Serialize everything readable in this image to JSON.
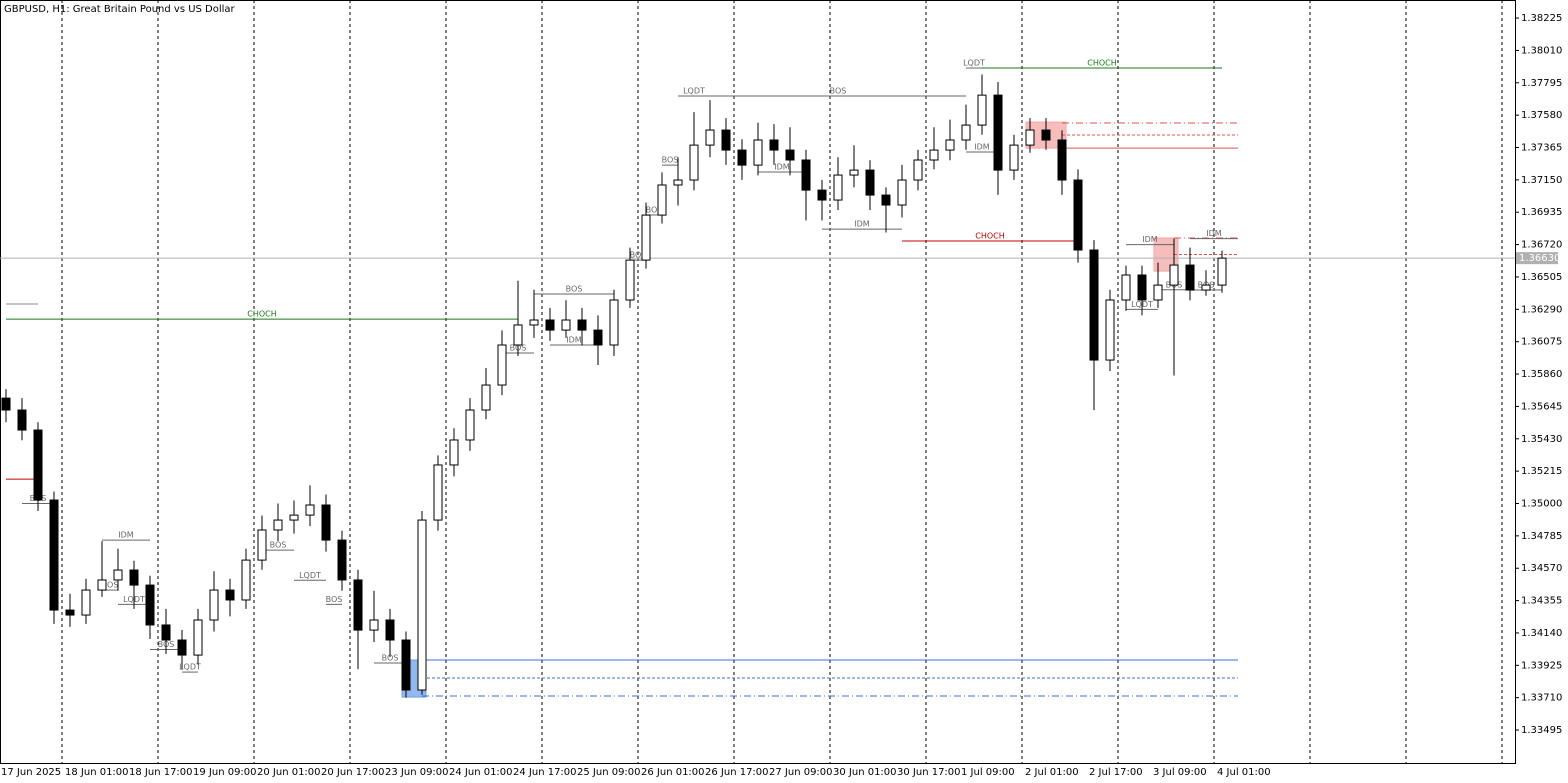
{
  "chart_data": {
    "type": "candlestick",
    "title": "GBPUSD, H1:  Great Britain Pound vs US Dollar",
    "categories": [
      "17 Jun 2025",
      null,
      null,
      null,
      "18 Jun 01:00",
      null,
      null,
      null,
      "18 Jun 17:00",
      null,
      null,
      null,
      "19 Jun 09:00",
      null,
      null,
      null,
      "20 Jun 01:00",
      null,
      null,
      null,
      "20 Jun 17:00",
      null,
      null,
      null,
      "23 Jun 09:00",
      null,
      null,
      null,
      "24 Jun 01:00",
      null,
      null,
      null,
      "24 Jun 17:00",
      null,
      null,
      null,
      "25 Jun 09:00",
      null,
      null,
      null,
      "26 Jun 01:00",
      null,
      null,
      null,
      "26 Jun 17:00",
      null,
      null,
      null,
      "27 Jun 09:00",
      null,
      null,
      null,
      "30 Jun 01:00",
      null,
      null,
      null,
      "30 Jun 17:00",
      null,
      null,
      null,
      "1 Jul 09:00",
      null,
      null,
      null,
      "2 Jul 01:00",
      null,
      null,
      null,
      "2 Jul 17:00",
      null,
      null,
      null,
      "3 Jul 09:00",
      null,
      null,
      null,
      "4 Jul 01:00"
    ],
    "open": [
      1.357,
      1.35621,
      1.35488,
      1.35023,
      1.34292,
      1.34259,
      1.34425,
      1.34492,
      1.34558,
      1.34458,
      1.34193,
      1.34093,
      1.33993,
      1.34226,
      1.34425,
      1.34359,
      1.34624,
      1.34824,
      1.3489,
      1.34923,
      1.3499,
      1.34757,
      1.34492,
      1.34159,
      1.34226,
      1.34093,
      1.33761,
      1.3489,
      1.35256,
      1.35422,
      1.35621,
      1.35787,
      1.36053,
      1.36186,
      1.36219,
      1.36152,
      1.36219,
      1.36152,
      1.36053,
      1.36352,
      1.36617,
      1.36916,
      1.37116,
      1.37149,
      1.37381,
      1.37481,
      1.37348,
      1.37248,
      1.37415,
      1.37348,
      1.37282,
      1.37082,
      1.37016,
      1.37182,
      1.37215,
      1.37049,
      1.36983,
      1.37149,
      1.37282,
      1.37348,
      1.37415,
      1.37514,
      1.37713,
      1.37215,
      1.37381,
      1.37481,
      1.37415,
      1.37149,
      1.36684,
      1.35953,
      1.36352,
      1.36518,
      1.36352,
      1.36451,
      1.36584,
      1.36418,
      1.36451
    ],
    "high": [
      1.3576,
      1.357,
      1.3554,
      1.3508,
      1.344,
      1.345,
      1.3475,
      1.347,
      1.3462,
      1.3452,
      1.343,
      1.3416,
      1.343,
      1.3455,
      1.345,
      1.347,
      1.3492,
      1.35,
      1.3502,
      1.3512,
      1.3506,
      1.3482,
      1.3456,
      1.3442,
      1.343,
      1.3415,
      1.3495,
      1.3532,
      1.355,
      1.357,
      1.359,
      1.3615,
      1.3648,
      1.3642,
      1.363,
      1.3635,
      1.363,
      1.3625,
      1.3642,
      1.367,
      1.37,
      1.372,
      1.373,
      1.376,
      1.3768,
      1.3756,
      1.3742,
      1.3753,
      1.3752,
      1.375,
      1.3735,
      1.3715,
      1.373,
      1.3738,
      1.3728,
      1.371,
      1.3725,
      1.3735,
      1.375,
      1.3755,
      1.3765,
      1.3785,
      1.378,
      1.3745,
      1.3756,
      1.3756,
      1.3748,
      1.3722,
      1.3675,
      1.3642,
      1.3658,
      1.3658,
      1.366,
      1.3676,
      1.367,
      1.3655,
      1.3668
    ],
    "low": [
      1.3554,
      1.3542,
      1.3495,
      1.342,
      1.3418,
      1.342,
      1.3438,
      1.3442,
      1.343,
      1.341,
      1.34,
      1.339,
      1.3393,
      1.3415,
      1.3425,
      1.343,
      1.3456,
      1.3475,
      1.348,
      1.3485,
      1.3468,
      1.3442,
      1.339,
      1.3408,
      1.3398,
      1.3371,
      1.3373,
      1.3482,
      1.3518,
      1.3535,
      1.3556,
      1.3572,
      1.3598,
      1.361,
      1.3608,
      1.361,
      1.3605,
      1.3592,
      1.3598,
      1.363,
      1.3656,
      1.3686,
      1.3698,
      1.3708,
      1.373,
      1.3725,
      1.3715,
      1.3718,
      1.3725,
      1.3718,
      1.3688,
      1.3688,
      1.3695,
      1.371,
      1.3695,
      1.368,
      1.369,
      1.3708,
      1.3722,
      1.3728,
      1.3735,
      1.3745,
      1.3705,
      1.3715,
      1.3733,
      1.3735,
      1.3705,
      1.366,
      1.3562,
      1.3588,
      1.3628,
      1.3625,
      1.363,
      1.3585,
      1.3635,
      1.3638,
      1.364
    ],
    "close": [
      1.35621,
      1.35488,
      1.35023,
      1.34292,
      1.34259,
      1.34425,
      1.34492,
      1.34558,
      1.34458,
      1.34193,
      1.34093,
      1.33993,
      1.34226,
      1.34425,
      1.34359,
      1.34624,
      1.34824,
      1.3489,
      1.34923,
      1.3499,
      1.34757,
      1.34492,
      1.34159,
      1.34226,
      1.34093,
      1.33761,
      1.3489,
      1.35256,
      1.35422,
      1.35621,
      1.35787,
      1.36053,
      1.36186,
      1.36219,
      1.36152,
      1.36219,
      1.36152,
      1.36053,
      1.36352,
      1.36617,
      1.36916,
      1.37116,
      1.37149,
      1.37381,
      1.37481,
      1.37348,
      1.37248,
      1.37415,
      1.37348,
      1.37282,
      1.37082,
      1.37016,
      1.37182,
      1.37215,
      1.37049,
      1.36983,
      1.37149,
      1.37282,
      1.37348,
      1.37415,
      1.37514,
      1.37713,
      1.37215,
      1.37381,
      1.37481,
      1.37415,
      1.37149,
      1.36684,
      1.35953,
      1.36352,
      1.36518,
      1.36352,
      1.36451,
      1.36584,
      1.36418,
      1.36451,
      1.3663
    ],
    "up_color": "#ffffff",
    "down_color": "#000000",
    "ylim": [
      1.33276,
      1.38345
    ],
    "yticks": [
      1.38225,
      {
        "value": 1.3801,
        "label": "1.38010"
      },
      1.37795,
      {
        "value": 1.3758,
        "label": "1.37580"
      },
      1.37365,
      {
        "value": 1.3715,
        "label": "1.37150"
      },
      1.36935,
      {
        "value": 1.3672,
        "label": "1.36720"
      },
      1.36505,
      {
        "value": 1.3629,
        "label": "1.36290"
      },
      1.36075,
      {
        "value": 1.3586,
        "label": "1.35860"
      },
      1.35645,
      {
        "value": 1.3543,
        "label": "1.35430"
      },
      1.35215,
      {
        "value": 1.35,
        "label": "1.35000"
      },
      1.34785,
      {
        "value": 1.3457,
        "label": "1.34570"
      },
      1.34355,
      {
        "value": 1.3414,
        "label": "1.34140"
      },
      1.33925,
      {
        "value": 1.3371,
        "label": "1.33710"
      },
      1.33495
    ],
    "last_price": {
      "value": 1.3663,
      "label": "1.36630"
    },
    "annotations": [
      {
        "label": "CHOCH",
        "price": 1.36225,
        "from": 0,
        "to": 32,
        "color": "#1a7a1a"
      },
      {
        "label": "CHOCH",
        "price": 1.37893,
        "from": 61,
        "to": 76,
        "color": "#1a7a1a"
      },
      {
        "label": "BOS",
        "price": 1.37707,
        "from": 44,
        "to": 60,
        "color": "#666666"
      },
      {
        "label": "CHOCH",
        "price": 1.36744,
        "from": 56,
        "to": 67,
        "color": "#c00000"
      },
      {
        "label": "BOS",
        "price": 1.36392,
        "from": 33,
        "to": 38,
        "color": "#666666"
      },
      {
        "label": "IDM",
        "price": 1.36823,
        "from": 51,
        "to": 56,
        "color": "#666666"
      },
      {
        "label": "LQDT",
        "price": 1.37707,
        "from": 42,
        "to": 44,
        "color": "#666666"
      },
      {
        "label": "LQDT",
        "price": 1.37893,
        "from": 60,
        "to": 61,
        "color": "#666666"
      },
      {
        "label": "IDM",
        "price": 1.37335,
        "from": 60,
        "to": 62,
        "color": "#666666"
      },
      {
        "label": "IDM",
        "price": 1.37202,
        "from": 47,
        "to": 50,
        "color": "#666666"
      },
      {
        "label": "BOS",
        "price": 1.37248,
        "from": 41,
        "to": 42,
        "color": "#666666"
      },
      {
        "label": "BOS",
        "price": 1.36917,
        "from": 40,
        "to": 41,
        "color": "#666666"
      },
      {
        "label": "BOS",
        "price": 1.36617,
        "from": 39,
        "to": 40,
        "color": "#666666"
      },
      {
        "label": "IDM",
        "price": 1.36053,
        "from": 34,
        "to": 37,
        "color": "#666666"
      },
      {
        "label": "BOS",
        "price": 1.36,
        "from": 31,
        "to": 33,
        "color": "#666666"
      },
      {
        "label": "BOS",
        "price": 1.35,
        "from": 1,
        "to": 3,
        "color": "#666666"
      },
      {
        "label": "IDM",
        "price": 1.34757,
        "from": 6,
        "to": 9,
        "color": "#666666"
      },
      {
        "label": "BOS",
        "price": 1.34425,
        "from": 6,
        "to": 7,
        "color": "#666666"
      },
      {
        "label": "LQDT",
        "price": 1.3433,
        "from": 7,
        "to": 9,
        "color": "#666666"
      },
      {
        "label": "BOS",
        "price": 1.3403,
        "from": 9,
        "to": 11,
        "color": "#666666"
      },
      {
        "label": "LQDT",
        "price": 1.3388,
        "from": 11,
        "to": 12,
        "color": "#666666"
      },
      {
        "label": "BOS",
        "price": 1.3469,
        "from": 16,
        "to": 18,
        "color": "#666666"
      },
      {
        "label": "LQDT",
        "price": 1.3449,
        "from": 18,
        "to": 20,
        "color": "#666666"
      },
      {
        "label": "BOS",
        "price": 1.3433,
        "from": 20,
        "to": 21,
        "color": "#666666"
      },
      {
        "label": "BOS",
        "price": 1.3394,
        "from": 23,
        "to": 25,
        "color": "#666666"
      },
      {
        "label": "IDM",
        "price": 1.3672,
        "from": 70,
        "to": 73,
        "color": "#666666"
      },
      {
        "label": "LQDT",
        "price": 1.3629,
        "from": 70,
        "to": 72,
        "color": "#666666"
      },
      {
        "label": "BOS",
        "price": 1.3642,
        "from": 72,
        "to": 74,
        "color": "#666666"
      },
      {
        "label": "IDM",
        "price": 1.3676,
        "from": 74,
        "to": 77,
        "color": "#666666"
      },
      {
        "label": "BOS",
        "price": 1.36418,
        "from": 74,
        "to": 76,
        "color": "#666666"
      }
    ],
    "zones": [
      {
        "top": 1.37534,
        "bottom": 1.37361,
        "from": 64,
        "to": 66,
        "color": "#f4a6a6"
      },
      {
        "top": 1.36764,
        "bottom": 1.36544,
        "from": 72,
        "to": 73,
        "color": "#f4a6a6"
      },
      {
        "top": 1.3396,
        "bottom": 1.33714,
        "from": 25,
        "to": 26,
        "color": "#6f9fe8"
      }
    ],
    "levels": [
      {
        "price": 1.37361,
        "from": 66,
        "to": 77,
        "color": "#e05050",
        "style": "solid"
      },
      {
        "price": 1.37448,
        "from": 66,
        "to": 77,
        "color": "#e05050",
        "style": "dashed"
      },
      {
        "price": 1.37528,
        "from": 66,
        "to": 77,
        "color": "#e05050",
        "style": "dashdot"
      },
      {
        "price": 1.36654,
        "from": 73,
        "to": 77,
        "color": "#e05050",
        "style": "dashed"
      },
      {
        "price": 1.36764,
        "from": 73,
        "to": 77,
        "color": "#e05050",
        "style": "dashdot"
      },
      {
        "price": 1.3396,
        "from": 26,
        "to": 77,
        "color": "#3a6fd8",
        "style": "solid"
      },
      {
        "price": 1.33841,
        "from": 26,
        "to": 77,
        "color": "#3a6fd8",
        "style": "dashed"
      },
      {
        "price": 1.33721,
        "from": 26,
        "to": 77,
        "color": "#3a6fd8",
        "style": "dashdot"
      },
      {
        "price": 1.36325,
        "from": 0,
        "to": 2,
        "color": "#888888",
        "style": "solid"
      },
      {
        "price": 1.35162,
        "from": 0,
        "to": 2,
        "color": "#c00000",
        "style": "solid"
      }
    ]
  }
}
